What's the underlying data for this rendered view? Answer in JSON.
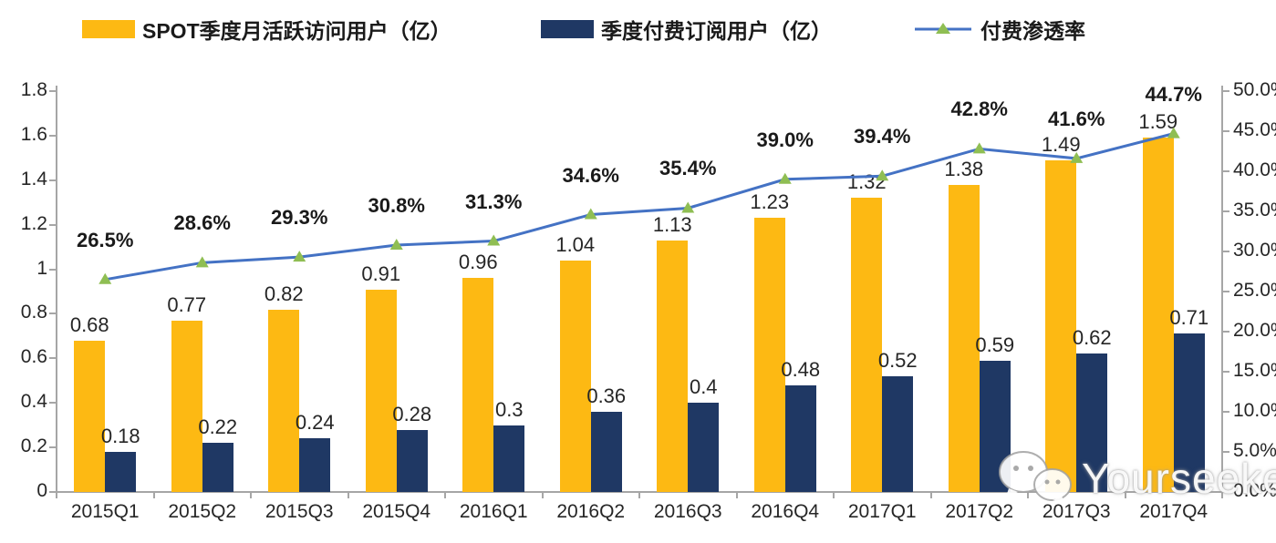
{
  "legend": {
    "items": [
      {
        "id": "mau",
        "label": "SPOT季度月活跃访问用户（亿）",
        "swatch": "bar",
        "color": "#FDB913"
      },
      {
        "id": "subs",
        "label": "季度付费订阅用户（亿）",
        "swatch": "bar",
        "color": "#1F3864"
      },
      {
        "id": "penetration",
        "label": "付费渗透率",
        "swatch": "line",
        "color": "#4472C4",
        "marker_color": "#8FBE53"
      }
    ]
  },
  "watermark": {
    "text": "Yourseeker",
    "icon": "wechat-icon"
  },
  "colors": {
    "mau_bar": "#FDB913",
    "subs_bar": "#1F3864",
    "line": "#4472C4",
    "marker": "#8FBE53",
    "axis": "#a6a6a6",
    "text": "#262626"
  },
  "chart_data": {
    "type": "bar",
    "subtype": "grouped-bars-with-line",
    "title": "",
    "xlabel": "",
    "ylabel_left": "",
    "ylabel_right": "",
    "grid": false,
    "legend_position": "top",
    "categories": [
      "2015Q1",
      "2015Q2",
      "2015Q3",
      "2015Q4",
      "2016Q1",
      "2016Q2",
      "2016Q3",
      "2016Q4",
      "2017Q1",
      "2017Q2",
      "2017Q3",
      "2017Q4"
    ],
    "series": [
      {
        "name": "SPOT季度月活跃访问用户（亿）",
        "type": "bar",
        "axis": "left",
        "color": "#FDB913",
        "values": [
          0.68,
          0.77,
          0.82,
          0.91,
          0.96,
          1.04,
          1.13,
          1.23,
          1.32,
          1.38,
          1.49,
          1.59
        ],
        "labels": [
          "0.68",
          "0.77",
          "0.82",
          "0.91",
          "0.96",
          "1.04",
          "1.13",
          "1.23",
          "1.32",
          "1.38",
          "1.49",
          "1.59"
        ]
      },
      {
        "name": "季度付费订阅用户（亿）",
        "type": "bar",
        "axis": "left",
        "color": "#1F3864",
        "values": [
          0.18,
          0.22,
          0.24,
          0.28,
          0.3,
          0.36,
          0.4,
          0.48,
          0.52,
          0.59,
          0.62,
          0.71
        ],
        "labels": [
          "0.18",
          "0.22",
          "0.24",
          "0.28",
          "0.3",
          "0.36",
          "0.4",
          "0.48",
          "0.52",
          "0.59",
          "0.62",
          "0.71"
        ]
      },
      {
        "name": "付费渗透率",
        "type": "line",
        "axis": "right",
        "color": "#4472C4",
        "marker": "triangle",
        "marker_color": "#8FBE53",
        "values": [
          26.5,
          28.6,
          29.3,
          30.8,
          31.3,
          34.6,
          35.4,
          39.0,
          39.4,
          42.8,
          41.6,
          44.7
        ],
        "labels": [
          "26.5%",
          "28.6%",
          "29.3%",
          "30.8%",
          "31.3%",
          "34.6%",
          "35.4%",
          "39.0%",
          "39.4%",
          "42.8%",
          "41.6%",
          "44.7%"
        ]
      }
    ],
    "left_axis": {
      "min": 0,
      "max": 1.8,
      "tick_labels": [
        "0",
        "0.2",
        "0.4",
        "0.6",
        "0.8",
        "1",
        "1.2",
        "1.4",
        "1.6",
        "1.8"
      ]
    },
    "right_axis": {
      "min": 0,
      "max": 50,
      "tick_labels": [
        "0.0%",
        "5.0%",
        "10.0%",
        "15.0%",
        "20.0%",
        "25.0%",
        "30.0%",
        "35.0%",
        "40.0%",
        "45.0%",
        "50.0%"
      ]
    }
  }
}
